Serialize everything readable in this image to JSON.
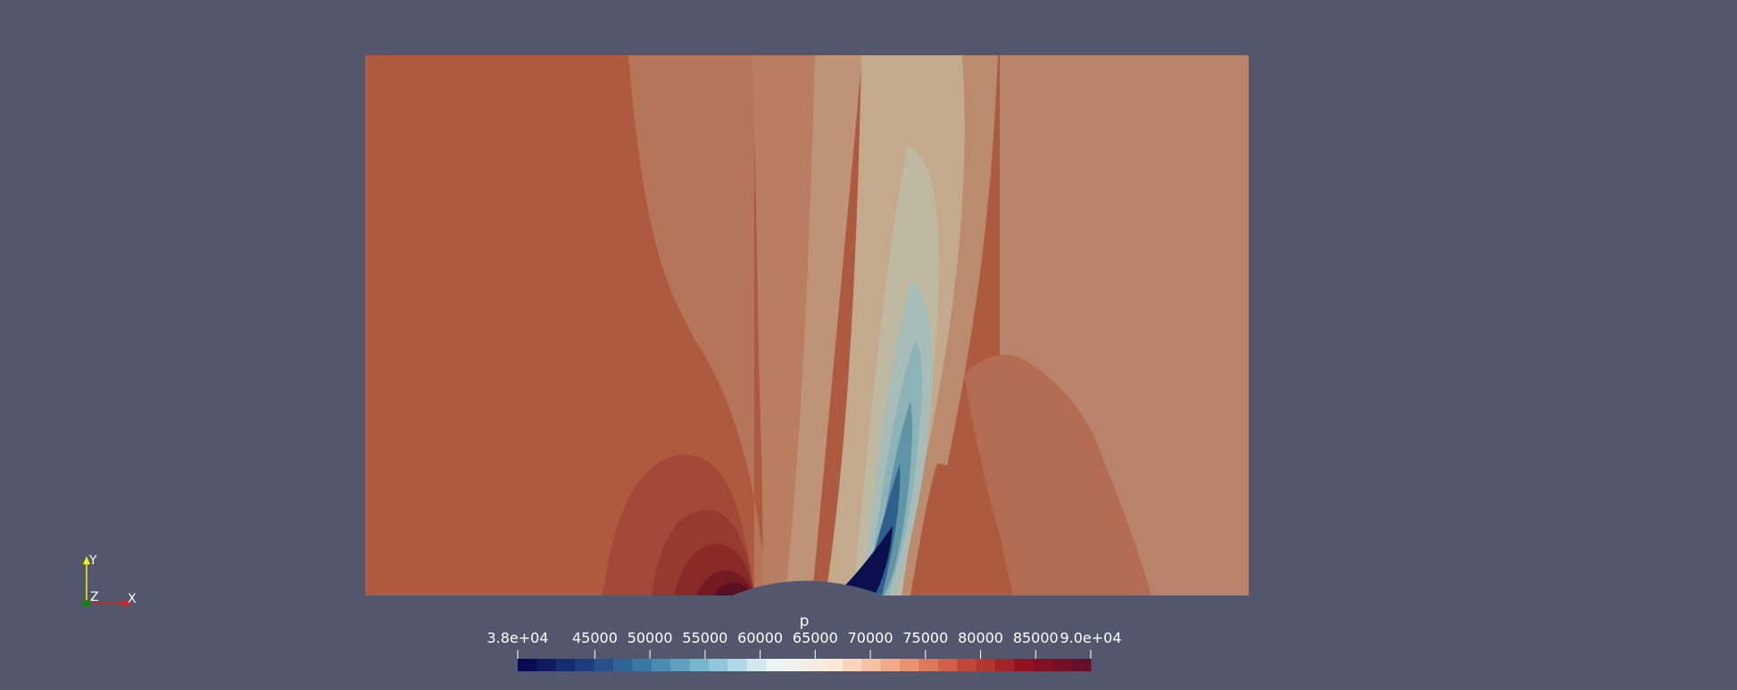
{
  "scalar_bar": {
    "title": "p",
    "range": [
      38000,
      90000
    ],
    "tick_labels": [
      "3.8e+04",
      "45000",
      "50000",
      "55000",
      "60000",
      "65000",
      "70000",
      "75000",
      "80000",
      "85000",
      "9.0e+04"
    ],
    "tick_values": [
      38000,
      45000,
      50000,
      55000,
      60000,
      65000,
      70000,
      75000,
      80000,
      85000,
      90000
    ],
    "num_bands": 30,
    "colormap": [
      "#04014b",
      "#1c3a7c",
      "#3a7aa6",
      "#7fc1d4",
      "#e9f6f7",
      "#fde7d3",
      "#f0a07c",
      "#c64a3a",
      "#8f0f1e",
      "#5d0f2c"
    ]
  },
  "orientation_axes": {
    "x_label": "X",
    "y_label": "Y",
    "z_label": "Z",
    "x_color": "#e11f1f",
    "y_color": "#f5f500",
    "z_color": "#0a8a0a"
  },
  "colors": {
    "background": "#52576e",
    "far_field": "#b8836a",
    "freestream": "#ad5a41"
  }
}
